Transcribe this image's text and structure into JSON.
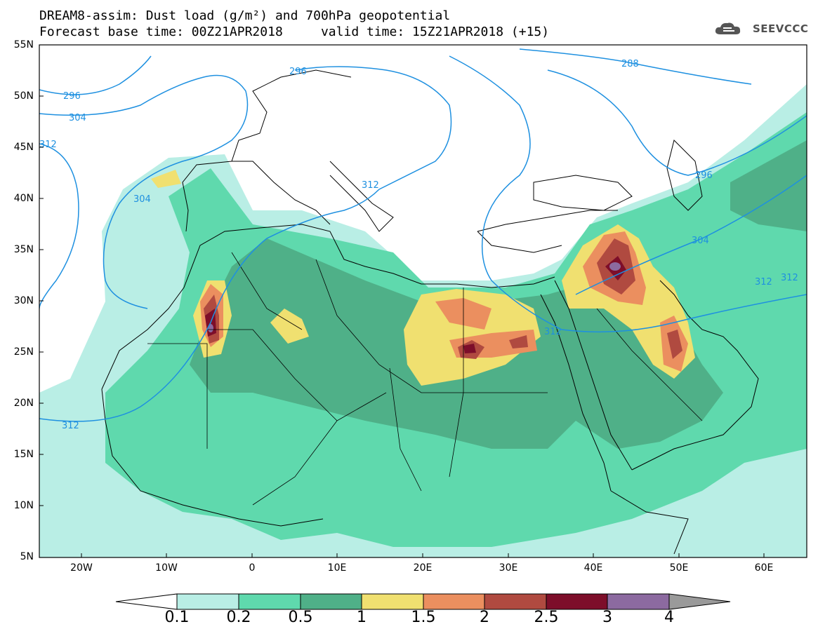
{
  "header": {
    "title_line1": "DREAM8-assim: Dust load (g/m²) and 700hPa geopotential",
    "title_line2": "Forecast base time: 00Z21APR2018     valid time: 15Z21APR2018 (+15)",
    "brand": "SEEVCCC"
  },
  "map": {
    "latitude_labels": [
      "55N",
      "50N",
      "45N",
      "40N",
      "35N",
      "30N",
      "25N",
      "20N",
      "15N",
      "10N",
      "5N"
    ],
    "longitude_labels": [
      "20W",
      "10W",
      "0",
      "10E",
      "20E",
      "30E",
      "40E",
      "50E",
      "60E"
    ],
    "contour_labels": [
      "288",
      "296",
      "304",
      "312",
      "312",
      "296",
      "304",
      "312",
      "304",
      "312",
      "312",
      "312",
      "296"
    ],
    "colors": {
      "coast": "#000000",
      "contour": "#1e90e0",
      "ocean": "#ffffff"
    }
  },
  "colorbar": {
    "labels": [
      "0.1",
      "0.2",
      "0.5",
      "1",
      "1.5",
      "2",
      "2.5",
      "3",
      "4"
    ],
    "colors": [
      "#b9eee5",
      "#5fd9ad",
      "#4fb088",
      "#f0e070",
      "#eb8f5f",
      "#b04a40",
      "#7d0e2a",
      "#8c6aa0",
      "#9a9a9a"
    ]
  }
}
